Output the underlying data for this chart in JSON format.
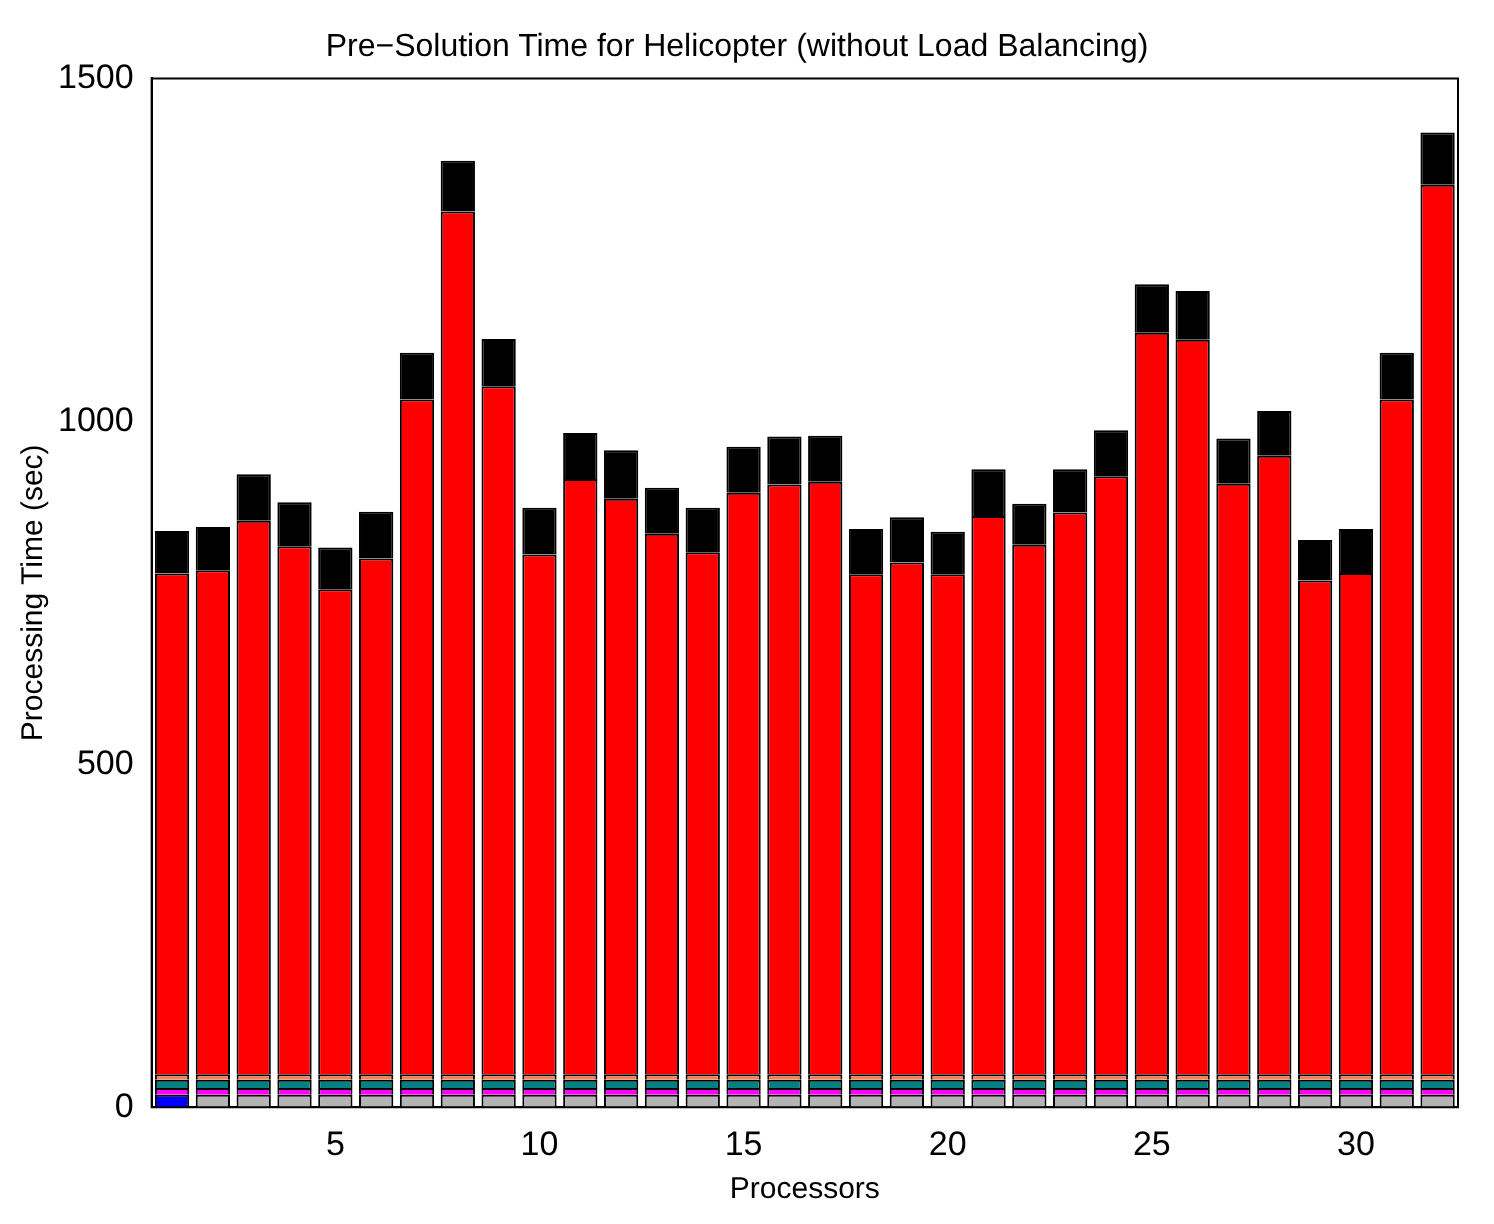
{
  "chart_data": {
    "type": "bar",
    "title": "Pre−Solution Time for Helicopter (without Load Balancing)",
    "xlabel": "Processors",
    "ylabel": "Processing Time (sec)",
    "x": [
      1,
      2,
      3,
      4,
      5,
      6,
      7,
      8,
      9,
      10,
      11,
      12,
      13,
      14,
      15,
      16,
      17,
      18,
      19,
      20,
      21,
      22,
      23,
      24,
      25,
      26,
      27,
      28,
      29,
      30,
      31,
      32
    ],
    "stacked": true,
    "series": [
      {
        "colors": [
          "#0000ff",
          "#b4b4b4",
          "#b4b4b4",
          "#b4b4b4",
          "#b4b4b4",
          "#b4b4b4",
          "#b4b4b4",
          "#b4b4b4",
          "#b4b4b4",
          "#b4b4b4",
          "#b4b4b4",
          "#b4b4b4",
          "#b4b4b4",
          "#b4b4b4",
          "#b4b4b4",
          "#b4b4b4",
          "#b4b4b4",
          "#b4b4b4",
          "#b4b4b4",
          "#b4b4b4",
          "#b4b4b4",
          "#b4b4b4",
          "#b4b4b4",
          "#b4b4b4",
          "#b4b4b4",
          "#b4b4b4",
          "#b4b4b4",
          "#b4b4b4",
          "#b4b4b4",
          "#b4b4b4",
          "#b4b4b4",
          "#b4b4b4"
        ],
        "values": [
          18,
          18,
          18,
          18,
          18,
          18,
          18,
          18,
          18,
          18,
          18,
          18,
          18,
          18,
          18,
          18,
          18,
          18,
          18,
          18,
          18,
          18,
          18,
          18,
          18,
          18,
          18,
          18,
          18,
          18,
          18,
          18
        ]
      },
      {
        "color": "#ff00ff",
        "values": [
          10,
          10,
          10,
          10,
          10,
          10,
          10,
          10,
          10,
          10,
          10,
          10,
          10,
          10,
          10,
          10,
          10,
          10,
          10,
          10,
          10,
          10,
          10,
          10,
          10,
          10,
          10,
          10,
          10,
          10,
          10,
          10
        ]
      },
      {
        "color": "#008080",
        "values": [
          12,
          12,
          12,
          12,
          12,
          12,
          12,
          12,
          12,
          12,
          12,
          12,
          12,
          12,
          12,
          12,
          12,
          12,
          12,
          12,
          12,
          12,
          12,
          12,
          12,
          12,
          12,
          12,
          12,
          12,
          12,
          12
        ]
      },
      {
        "color": "#ff7f50",
        "values": [
          8,
          8,
          8,
          8,
          8,
          8,
          8,
          8,
          8,
          8,
          8,
          8,
          8,
          8,
          8,
          8,
          8,
          8,
          8,
          8,
          8,
          8,
          8,
          8,
          8,
          8,
          8,
          8,
          8,
          8,
          8,
          8
        ]
      },
      {
        "color": "#ff0000",
        "values": [
          730,
          735,
          807,
          770,
          707,
          752,
          984,
          1258,
          1003,
          758,
          868,
          839,
          788,
          761,
          848,
          860,
          864,
          729,
          746,
          729,
          814,
          772,
          819,
          872,
          1081,
          1071,
          861,
          902,
          720,
          731,
          984,
          1297
        ]
      },
      {
        "color": "#000000",
        "values": [
          62,
          63,
          68,
          64,
          61,
          68,
          68,
          74,
          69,
          68,
          67,
          71,
          67,
          65,
          67,
          70,
          67,
          66,
          66,
          62,
          68,
          60,
          63,
          67,
          71,
          71,
          66,
          65,
          59,
          64,
          68,
          76
        ]
      }
    ],
    "xlim": [
      0.5,
      32.5
    ],
    "xticks": [
      5,
      10,
      15,
      20,
      25,
      30
    ],
    "ylim": [
      0,
      1500
    ],
    "yticks": [
      0,
      500,
      1000,
      1500
    ],
    "grid": false,
    "legend": false
  }
}
